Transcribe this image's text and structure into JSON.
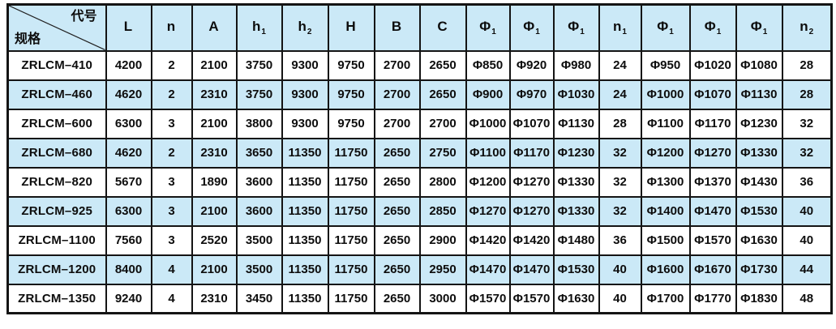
{
  "table": {
    "corner": {
      "top_label": "代号",
      "bottom_label": "规格"
    },
    "columns": [
      {
        "key": "L",
        "label": "L",
        "sub": ""
      },
      {
        "key": "n",
        "label": "n",
        "sub": ""
      },
      {
        "key": "A",
        "label": "A",
        "sub": ""
      },
      {
        "key": "h1",
        "label": "h",
        "sub": "1"
      },
      {
        "key": "h2",
        "label": "h",
        "sub": "2"
      },
      {
        "key": "H",
        "label": "H",
        "sub": ""
      },
      {
        "key": "B",
        "label": "B",
        "sub": ""
      },
      {
        "key": "C",
        "label": "C",
        "sub": ""
      },
      {
        "key": "phi-a",
        "label": "Φ",
        "sub": "1"
      },
      {
        "key": "phi-b",
        "label": "Φ",
        "sub": "1"
      },
      {
        "key": "phi-c",
        "label": "Φ",
        "sub": "1"
      },
      {
        "key": "n1",
        "label": "n",
        "sub": "1"
      },
      {
        "key": "phi-d",
        "label": "Φ",
        "sub": "1"
      },
      {
        "key": "phi-e",
        "label": "Φ",
        "sub": "1"
      },
      {
        "key": "phi-f",
        "label": "Φ",
        "sub": "1"
      },
      {
        "key": "n2",
        "label": "n",
        "sub": "2"
      }
    ],
    "rows": [
      {
        "model": "ZRLCM–410",
        "values": [
          "4200",
          "2",
          "2100",
          "3750",
          "9300",
          "9750",
          "2700",
          "2650",
          "Φ850",
          "Φ920",
          "Φ980",
          "24",
          "Φ950",
          "Φ1020",
          "Φ1080",
          "28"
        ]
      },
      {
        "model": "ZRLCM–460",
        "values": [
          "4620",
          "2",
          "2310",
          "3750",
          "9300",
          "9750",
          "2700",
          "2650",
          "Φ900",
          "Φ970",
          "Φ1030",
          "24",
          "Φ1000",
          "Φ1070",
          "Φ1130",
          "28"
        ]
      },
      {
        "model": "ZRLCM–600",
        "values": [
          "6300",
          "3",
          "2100",
          "3800",
          "9300",
          "9750",
          "2700",
          "2700",
          "Φ1000",
          "Φ1070",
          "Φ1130",
          "28",
          "Φ1100",
          "Φ1170",
          "Φ1230",
          "32"
        ]
      },
      {
        "model": "ZRLCM–680",
        "values": [
          "4620",
          "2",
          "2310",
          "3650",
          "11350",
          "11750",
          "2650",
          "2750",
          "Φ1100",
          "Φ1170",
          "Φ1230",
          "32",
          "Φ1200",
          "Φ1270",
          "Φ1330",
          "32"
        ]
      },
      {
        "model": "ZRLCM–820",
        "values": [
          "5670",
          "3",
          "1890",
          "3600",
          "11350",
          "11750",
          "2650",
          "2800",
          "Φ1200",
          "Φ1270",
          "Φ1330",
          "32",
          "Φ1300",
          "Φ1370",
          "Φ1430",
          "36"
        ]
      },
      {
        "model": "ZRLCM–925",
        "values": [
          "6300",
          "3",
          "2100",
          "3600",
          "11350",
          "11750",
          "2650",
          "2850",
          "Φ1270",
          "Φ1270",
          "Φ1330",
          "32",
          "Φ1400",
          "Φ1470",
          "Φ1530",
          "40"
        ]
      },
      {
        "model": "ZRLCM–1100",
        "values": [
          "7560",
          "3",
          "2520",
          "3500",
          "11350",
          "11750",
          "2650",
          "2900",
          "Φ1420",
          "Φ1420",
          "Φ1480",
          "36",
          "Φ1500",
          "Φ1570",
          "Φ1630",
          "40"
        ]
      },
      {
        "model": "ZRLCM–1200",
        "values": [
          "8400",
          "4",
          "2100",
          "3500",
          "11350",
          "11750",
          "2650",
          "2950",
          "Φ1470",
          "Φ1470",
          "Φ1530",
          "40",
          "Φ1600",
          "Φ1670",
          "Φ1730",
          "44"
        ]
      },
      {
        "model": "ZRLCM–1350",
        "values": [
          "9240",
          "4",
          "2310",
          "3450",
          "11350",
          "11750",
          "2650",
          "3000",
          "Φ1570",
          "Φ1570",
          "Φ1630",
          "40",
          "Φ1700",
          "Φ1770",
          "Φ1830",
          "48"
        ]
      }
    ],
    "colors": {
      "fill_blue": "#cbe9f7",
      "row_white": "#ffffff",
      "border_black": "#141414",
      "text_black": "#0d0d0d"
    }
  }
}
